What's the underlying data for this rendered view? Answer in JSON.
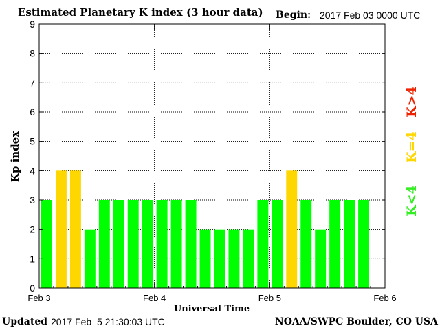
{
  "header": {
    "title": "Estimated Planetary K index (3 hour data)",
    "begin_label": "Begin:",
    "begin_value": "2017 Feb 03 0000 UTC"
  },
  "footer": {
    "updated_label": "Updated",
    "updated_value": "2017 Feb  5 21:30:03 UTC",
    "source": "NOAA/SWPC Boulder, CO USA"
  },
  "legend": [
    {
      "label": "K<4",
      "color": "#33ee22"
    },
    {
      "label": "K=4",
      "color": "#ffd700"
    },
    {
      "label": "K>4",
      "color": "#ee2200"
    }
  ],
  "colors": {
    "below_4": "#00ff00",
    "equal_4": "#ffd700",
    "above_4": "#ff0000"
  },
  "chart_data": {
    "type": "bar",
    "title": "Estimated Planetary K index (3 hour data)",
    "xlabel": "Universal Time",
    "ylabel": "Kp index",
    "ylim": [
      0,
      9
    ],
    "yticks": [
      "0",
      "1",
      "2",
      "3",
      "4",
      "5",
      "6",
      "7",
      "8",
      "9"
    ],
    "xticks": [
      "Feb 3",
      "Feb 4",
      "Feb 5",
      "Feb 6"
    ],
    "grid": true,
    "bars_per_day": 8,
    "values": [
      3,
      4,
      4,
      2,
      3,
      3,
      3,
      3,
      3,
      3,
      3,
      2,
      2,
      2,
      2,
      3,
      3,
      4,
      3,
      2,
      3,
      3,
      3
    ]
  }
}
